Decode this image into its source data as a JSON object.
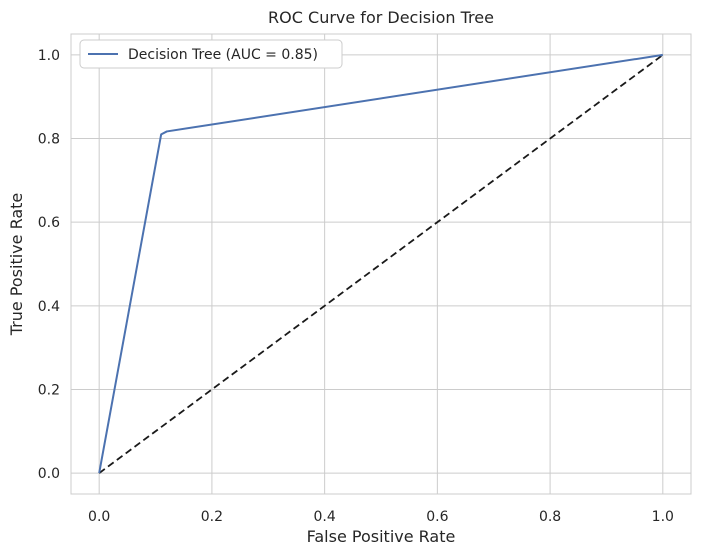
{
  "chart_data": {
    "type": "line",
    "title": "ROC Curve for Decision Tree",
    "xlabel": "False Positive Rate",
    "ylabel": "True Positive Rate",
    "xlim": [
      -0.05,
      1.05
    ],
    "ylim": [
      -0.05,
      1.05
    ],
    "x_ticks": [
      "0.0",
      "0.2",
      "0.4",
      "0.6",
      "0.8",
      "1.0"
    ],
    "y_ticks": [
      "0.0",
      "0.2",
      "0.4",
      "0.6",
      "0.8",
      "1.0"
    ],
    "x_tick_values": [
      0.0,
      0.2,
      0.4,
      0.6,
      0.8,
      1.0
    ],
    "y_tick_values": [
      0.0,
      0.2,
      0.4,
      0.6,
      0.8,
      1.0
    ],
    "grid": true,
    "legend_position": "upper-left",
    "series": [
      {
        "name": "Decision Tree (AUC = 0.85)",
        "color": "#4c72b0",
        "style": "solid",
        "x": [
          0.0,
          0.11,
          0.12,
          1.0
        ],
        "y": [
          0.0,
          0.81,
          0.817,
          1.0
        ]
      }
    ],
    "reference_line": {
      "color": "#1a1a1a",
      "style": "dashed",
      "x": [
        0.0,
        1.0
      ],
      "y": [
        0.0,
        1.0
      ]
    }
  }
}
